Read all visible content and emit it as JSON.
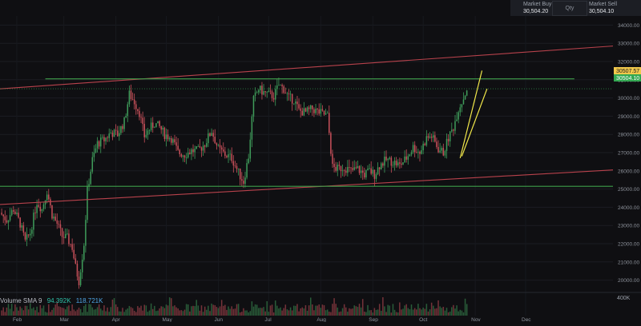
{
  "colors": {
    "background": "#0f0f12",
    "bull": "#3f9c5a",
    "bear": "#c8505a",
    "channel_line": "#b8424c",
    "support_line": "#3f9e4a",
    "wedge_line": "#f2e84a",
    "price_tag_bull": "#33a852",
    "price_tag_ask": "#f2c94c"
  },
  "trade_panel": {
    "buy_label": "Market Buy",
    "buy_price": "30,504.20",
    "qty_label": "Qty",
    "sell_label": "Market Sell",
    "sell_price": "30,504.10"
  },
  "price_tags": {
    "ask": "30507.57",
    "last": "30504.10"
  },
  "volume_legend": {
    "label": "Volume SMA 9",
    "sma_value_1": "94.392K",
    "sma_value_2": "118.721K",
    "axis_label": "400K"
  },
  "chart_data": {
    "type": "candlestick",
    "title": "",
    "yaxis": {
      "min": 19500,
      "max": 34500,
      "ticks": [
        20000,
        21000,
        22000,
        23000,
        24000,
        25000,
        26000,
        27000,
        28000,
        29000,
        30000,
        31000,
        32000,
        33000,
        34000
      ],
      "tick_labels": [
        "20000.00",
        "21000.00",
        "22000.00",
        "23000.00",
        "24000.00",
        "25000.00",
        "26000.00",
        "27000.00",
        "28000.00",
        "29000.00",
        "30000.00",
        "31000.00",
        "32000.00",
        "33000.00",
        "34000.00"
      ],
      "side": "right"
    },
    "xaxis": {
      "labels": [
        "Feb",
        "Mar",
        "Apr",
        "May",
        "Jun",
        "Jul",
        "Aug",
        "Sep",
        "Oct",
        "Nov",
        "Dec"
      ],
      "label_days": [
        10,
        38,
        69,
        99,
        130,
        160,
        191,
        222,
        252,
        283,
        313
      ],
      "day_range": [
        0,
        365
      ]
    },
    "price_path": [
      [
        0,
        23700
      ],
      [
        4,
        23300
      ],
      [
        8,
        23900
      ],
      [
        12,
        23100
      ],
      [
        15,
        22100
      ],
      [
        18,
        22600
      ],
      [
        22,
        24300
      ],
      [
        25,
        23900
      ],
      [
        28,
        24900
      ],
      [
        31,
        23600
      ],
      [
        34,
        23100
      ],
      [
        37,
        22400
      ],
      [
        40,
        22300
      ],
      [
        43,
        21800
      ],
      [
        45,
        20700
      ],
      [
        47,
        19950
      ],
      [
        50,
        22000
      ],
      [
        52,
        24900
      ],
      [
        55,
        26600
      ],
      [
        58,
        27500
      ],
      [
        62,
        27700
      ],
      [
        66,
        28100
      ],
      [
        70,
        28000
      ],
      [
        74,
        28700
      ],
      [
        77,
        30200
      ],
      [
        80,
        29800
      ],
      [
        83,
        29200
      ],
      [
        86,
        27900
      ],
      [
        89,
        28300
      ],
      [
        92,
        28600
      ],
      [
        95,
        28400
      ],
      [
        98,
        28000
      ],
      [
        102,
        27800
      ],
      [
        106,
        27000
      ],
      [
        110,
        26900
      ],
      [
        114,
        27100
      ],
      [
        118,
        27100
      ],
      [
        122,
        27500
      ],
      [
        126,
        28200
      ],
      [
        130,
        27200
      ],
      [
        134,
        26900
      ],
      [
        138,
        26700
      ],
      [
        142,
        25900
      ],
      [
        145,
        25400
      ],
      [
        148,
        26800
      ],
      [
        151,
        29900
      ],
      [
        154,
        30500
      ],
      [
        157,
        30300
      ],
      [
        160,
        30200
      ],
      [
        163,
        30100
      ],
      [
        166,
        30700
      ],
      [
        169,
        30500
      ],
      [
        172,
        30000
      ],
      [
        175,
        29900
      ],
      [
        178,
        29300
      ],
      [
        182,
        29200
      ],
      [
        186,
        29400
      ],
      [
        190,
        29200
      ],
      [
        193,
        29100
      ],
      [
        195,
        29000
      ],
      [
        198,
        26200
      ],
      [
        201,
        26100
      ],
      [
        205,
        26200
      ],
      [
        209,
        26000
      ],
      [
        213,
        26100
      ],
      [
        217,
        25800
      ],
      [
        220,
        26000
      ],
      [
        223,
        25800
      ],
      [
        226,
        26300
      ],
      [
        230,
        26600
      ],
      [
        234,
        26500
      ],
      [
        238,
        26300
      ],
      [
        242,
        26700
      ],
      [
        246,
        27300
      ],
      [
        250,
        27000
      ],
      [
        254,
        27800
      ],
      [
        257,
        27900
      ],
      [
        261,
        27200
      ],
      [
        264,
        27000
      ],
      [
        267,
        27800
      ],
      [
        270,
        28400
      ],
      [
        273,
        29400
      ],
      [
        276,
        30000
      ],
      [
        278,
        30504
      ]
    ],
    "volume": {
      "ymax": 400000,
      "sma9_values": [
        94392,
        118721
      ]
    },
    "overlay_lines": [
      {
        "kind": "channel-upper",
        "from": [
          0,
          30500
        ],
        "to": [
          365,
          32850
        ]
      },
      {
        "kind": "channel-lower",
        "from": [
          0,
          24150
        ],
        "to": [
          365,
          26050
        ]
      },
      {
        "kind": "resistance",
        "from": [
          27,
          31050
        ],
        "to": [
          342,
          31050
        ]
      },
      {
        "kind": "support",
        "from": [
          0,
          25150
        ],
        "to": [
          365,
          25150
        ]
      },
      {
        "kind": "wedge-upper",
        "from": [
          274,
          26700
        ],
        "to": [
          287,
          31500
        ]
      },
      {
        "kind": "wedge-lower",
        "from": [
          275,
          26800
        ],
        "to": [
          290,
          30500
        ]
      }
    ],
    "grid": true,
    "legend_position": "none"
  }
}
